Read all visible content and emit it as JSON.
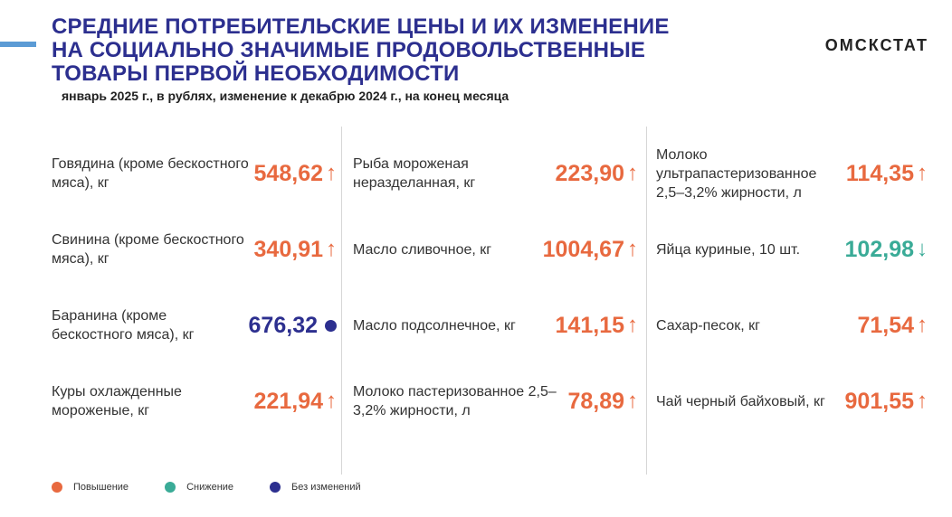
{
  "header": {
    "title_lines": [
      "СРЕДНИЕ ПОТРЕБИТЕЛЬСКИЕ ЦЕНЫ И ИХ ИЗМЕНЕНИЕ",
      "НА СОЦИАЛЬНО ЗНАЧИМЫЕ ПРОДОВОЛЬСТВЕННЫЕ",
      "ТОВАРЫ ПЕРВОЙ НЕОБХОДИМОСТИ"
    ],
    "subtitle": "январь 2025 г., в рублях, изменение к декабрю 2024 г., на конец месяца",
    "brand": "ОМСКСТАТ"
  },
  "colors": {
    "increase": "#e8693f",
    "decrease": "#3aab97",
    "unchanged": "#2c2f8f",
    "title": "#2c2f8f"
  },
  "symbols": {
    "up": "↑",
    "down": "↓"
  },
  "columns": [
    {
      "items": [
        {
          "label": "Говядина (кроме бескостного мяса), кг",
          "value": "548,62",
          "change": "up"
        },
        {
          "label": "Свинина (кроме бескостного мяса), кг",
          "value": "340,91",
          "change": "up"
        },
        {
          "label": "Баранина (кроме бескостного мяса), кг",
          "value": "676,32",
          "change": "same"
        },
        {
          "label": "Куры охлажденные мороженые, кг",
          "value": "221,94",
          "change": "up"
        }
      ]
    },
    {
      "items": [
        {
          "label": "Рыба мороженая неразделанная, кг",
          "value": "223,90",
          "change": "up"
        },
        {
          "label": "Масло сливочное, кг",
          "value": "1004,67",
          "change": "up"
        },
        {
          "label": "Масло подсолнечное, кг",
          "value": "141,15",
          "change": "up"
        },
        {
          "label": "Молоко пастеризованное 2,5–3,2% жирности, л",
          "value": "78,89",
          "change": "up"
        }
      ]
    },
    {
      "items": [
        {
          "label": "Молоко ультрапастеризованное 2,5–3,2% жирности, л",
          "value": "114,35",
          "change": "up"
        },
        {
          "label": "Яйца куриные, 10 шт.",
          "value": "102,98",
          "change": "down"
        },
        {
          "label": "Сахар-песок, кг",
          "value": "71,54",
          "change": "up"
        },
        {
          "label": "Чай черный байховый, кг",
          "value": "901,55",
          "change": "up"
        }
      ]
    }
  ],
  "legend": {
    "increase": "Повышение",
    "decrease": "Снижение",
    "unchanged": "Без изменений"
  }
}
